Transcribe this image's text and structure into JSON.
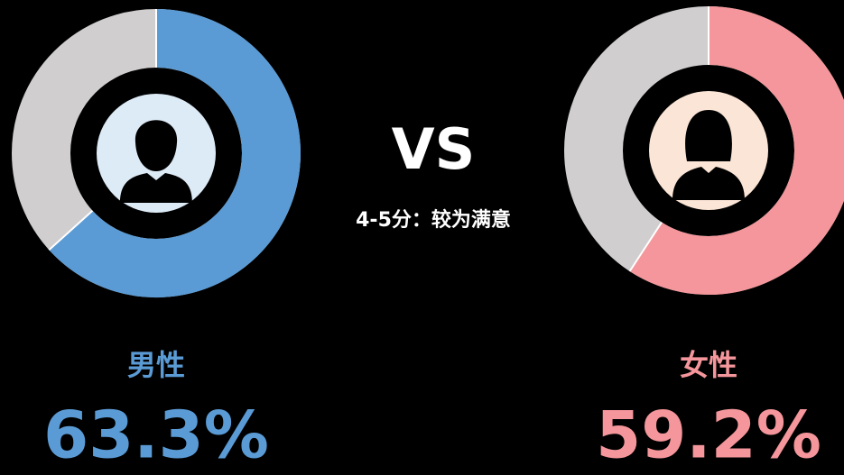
{
  "center": {
    "title": "VS",
    "subtitle": "4-5分：较为满意"
  },
  "chart_data": [
    {
      "type": "donut",
      "title": "男性",
      "values": [
        63.3
      ],
      "value_labels": [
        "63.3%"
      ],
      "color": "#5b9bd5",
      "rest_color": "#d0cece"
    },
    {
      "type": "donut",
      "title": "女性",
      "values": [
        59.2
      ],
      "value_labels": [
        "59.2%"
      ],
      "color": "#f4969b",
      "rest_color": "#d0cece"
    }
  ]
}
